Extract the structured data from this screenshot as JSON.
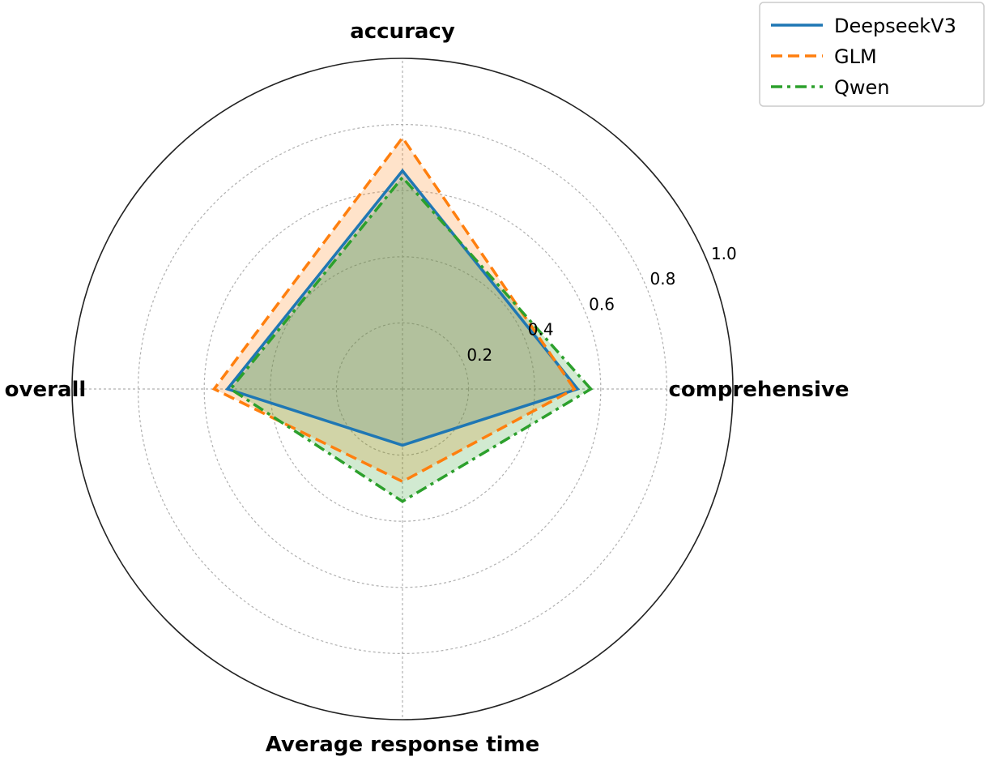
{
  "chart_data": {
    "type": "radar",
    "title": "",
    "categories": [
      "comprehensive",
      "accuracy",
      "overall",
      "Average response time"
    ],
    "rlim": [
      0,
      1.0
    ],
    "r_ticks": [
      0.2,
      0.4,
      0.6,
      0.8,
      1.0
    ],
    "r_tick_labels": [
      "0.2",
      "0.4",
      "0.6",
      "0.8",
      "1.0"
    ],
    "grid": true,
    "legend_position": "top-right",
    "series": [
      {
        "name": "DeepseekV3",
        "values": [
          0.53,
          0.66,
          0.53,
          0.17
        ],
        "color": "#1f77b4",
        "linestyle": "solid"
      },
      {
        "name": "GLM",
        "values": [
          0.52,
          0.76,
          0.57,
          0.28
        ],
        "color": "#ff7f0e",
        "linestyle": "dashed"
      },
      {
        "name": "Qwen",
        "values": [
          0.57,
          0.64,
          0.52,
          0.34
        ],
        "color": "#2ca02c",
        "linestyle": "dashdot"
      }
    ]
  }
}
